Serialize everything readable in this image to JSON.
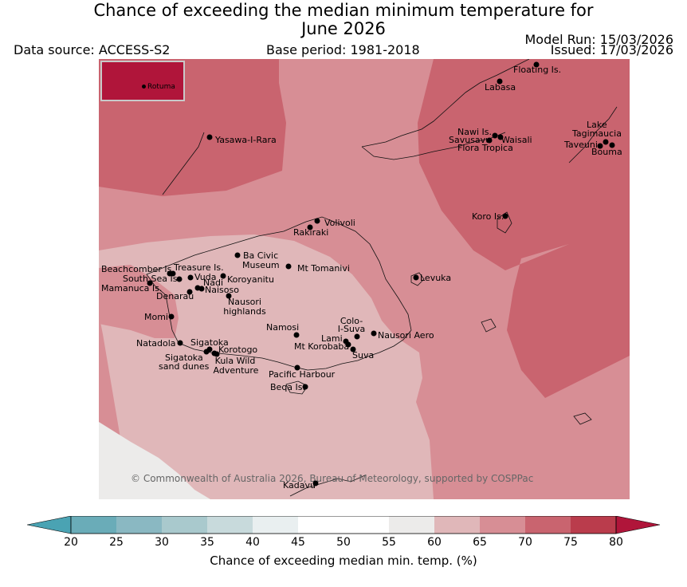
{
  "title_line1": "Chance of exceeding the median minimum temperature for",
  "title_line2": "June 2026",
  "data_source": "Data source: ACCESS-S2",
  "base_period": "Base period: 1981-2018",
  "model_run": "Model Run: 15/03/2026",
  "issued": "Issued: 17/03/2026",
  "inset_label": "Rotuma",
  "copyright": "© Commonwealth of Australia 2026, Bureau of Meteorology, supported by COSPPac",
  "colorbar": {
    "label": "Chance of exceeding median min. temp. (%)",
    "ticks": [
      "20",
      "25",
      "30",
      "35",
      "40",
      "45",
      "50",
      "55",
      "60",
      "65",
      "70",
      "75",
      "80"
    ],
    "colors": {
      "below20": "#4aa3b3",
      "b20_25": "#6aacb8",
      "b25_30": "#8ab8c2",
      "b30_35": "#a9c9cd",
      "b35_40": "#c8dadc",
      "b40_45": "#e9eff0",
      "b45_50": "#ffffff",
      "b50_55": "#ffffff",
      "b55_60": "#ecebea",
      "b60_65": "#e0b7b9",
      "b65_70": "#d78e95",
      "b70_75": "#c9646f",
      "b75_80": "#ba3c4c",
      "above80": "#b0153a"
    }
  },
  "places": [
    {
      "name": "Floating Is."
    },
    {
      "name": "Labasa"
    },
    {
      "name": "Yasawa-I-Rara"
    },
    {
      "name": "Nawi Is."
    },
    {
      "name": "Savusavu"
    },
    {
      "name": "Waisali"
    },
    {
      "name": "Flora Tropica"
    },
    {
      "name": "Lake"
    },
    {
      "name": "Tagimaucia"
    },
    {
      "name": "Taveuni"
    },
    {
      "name": "Bouma"
    },
    {
      "name": "Koro Is."
    },
    {
      "name": "Volivoli"
    },
    {
      "name": "Rakiraki"
    },
    {
      "name": "Ba Civic"
    },
    {
      "name": "Museum"
    },
    {
      "name": "Mt Tomanivi"
    },
    {
      "name": "Beachcomber Is."
    },
    {
      "name": "Treasure Is."
    },
    {
      "name": "South Sea Is."
    },
    {
      "name": "Vuda"
    },
    {
      "name": "Koroyanitu"
    },
    {
      "name": "Nadi"
    },
    {
      "name": "Mamanuca Is."
    },
    {
      "name": "Naisoso"
    },
    {
      "name": "Denarau"
    },
    {
      "name": "Nausori"
    },
    {
      "name": "highlands"
    },
    {
      "name": "Levuka"
    },
    {
      "name": "Momi"
    },
    {
      "name": "Colo-"
    },
    {
      "name": "I-Suva"
    },
    {
      "name": "Namosi"
    },
    {
      "name": "Lami"
    },
    {
      "name": "Nausori Aero"
    },
    {
      "name": "Natadola"
    },
    {
      "name": "Sigatoka"
    },
    {
      "name": "Mt Korobaba"
    },
    {
      "name": "Korotogo"
    },
    {
      "name": "Suva"
    },
    {
      "name": "Sigatoka"
    },
    {
      "name": "sand dunes"
    },
    {
      "name": "Kula Wild"
    },
    {
      "name": "Adventure"
    },
    {
      "name": "Pacific Harbour"
    },
    {
      "name": "Beqa Is."
    },
    {
      "name": "Kadavu"
    }
  ]
}
